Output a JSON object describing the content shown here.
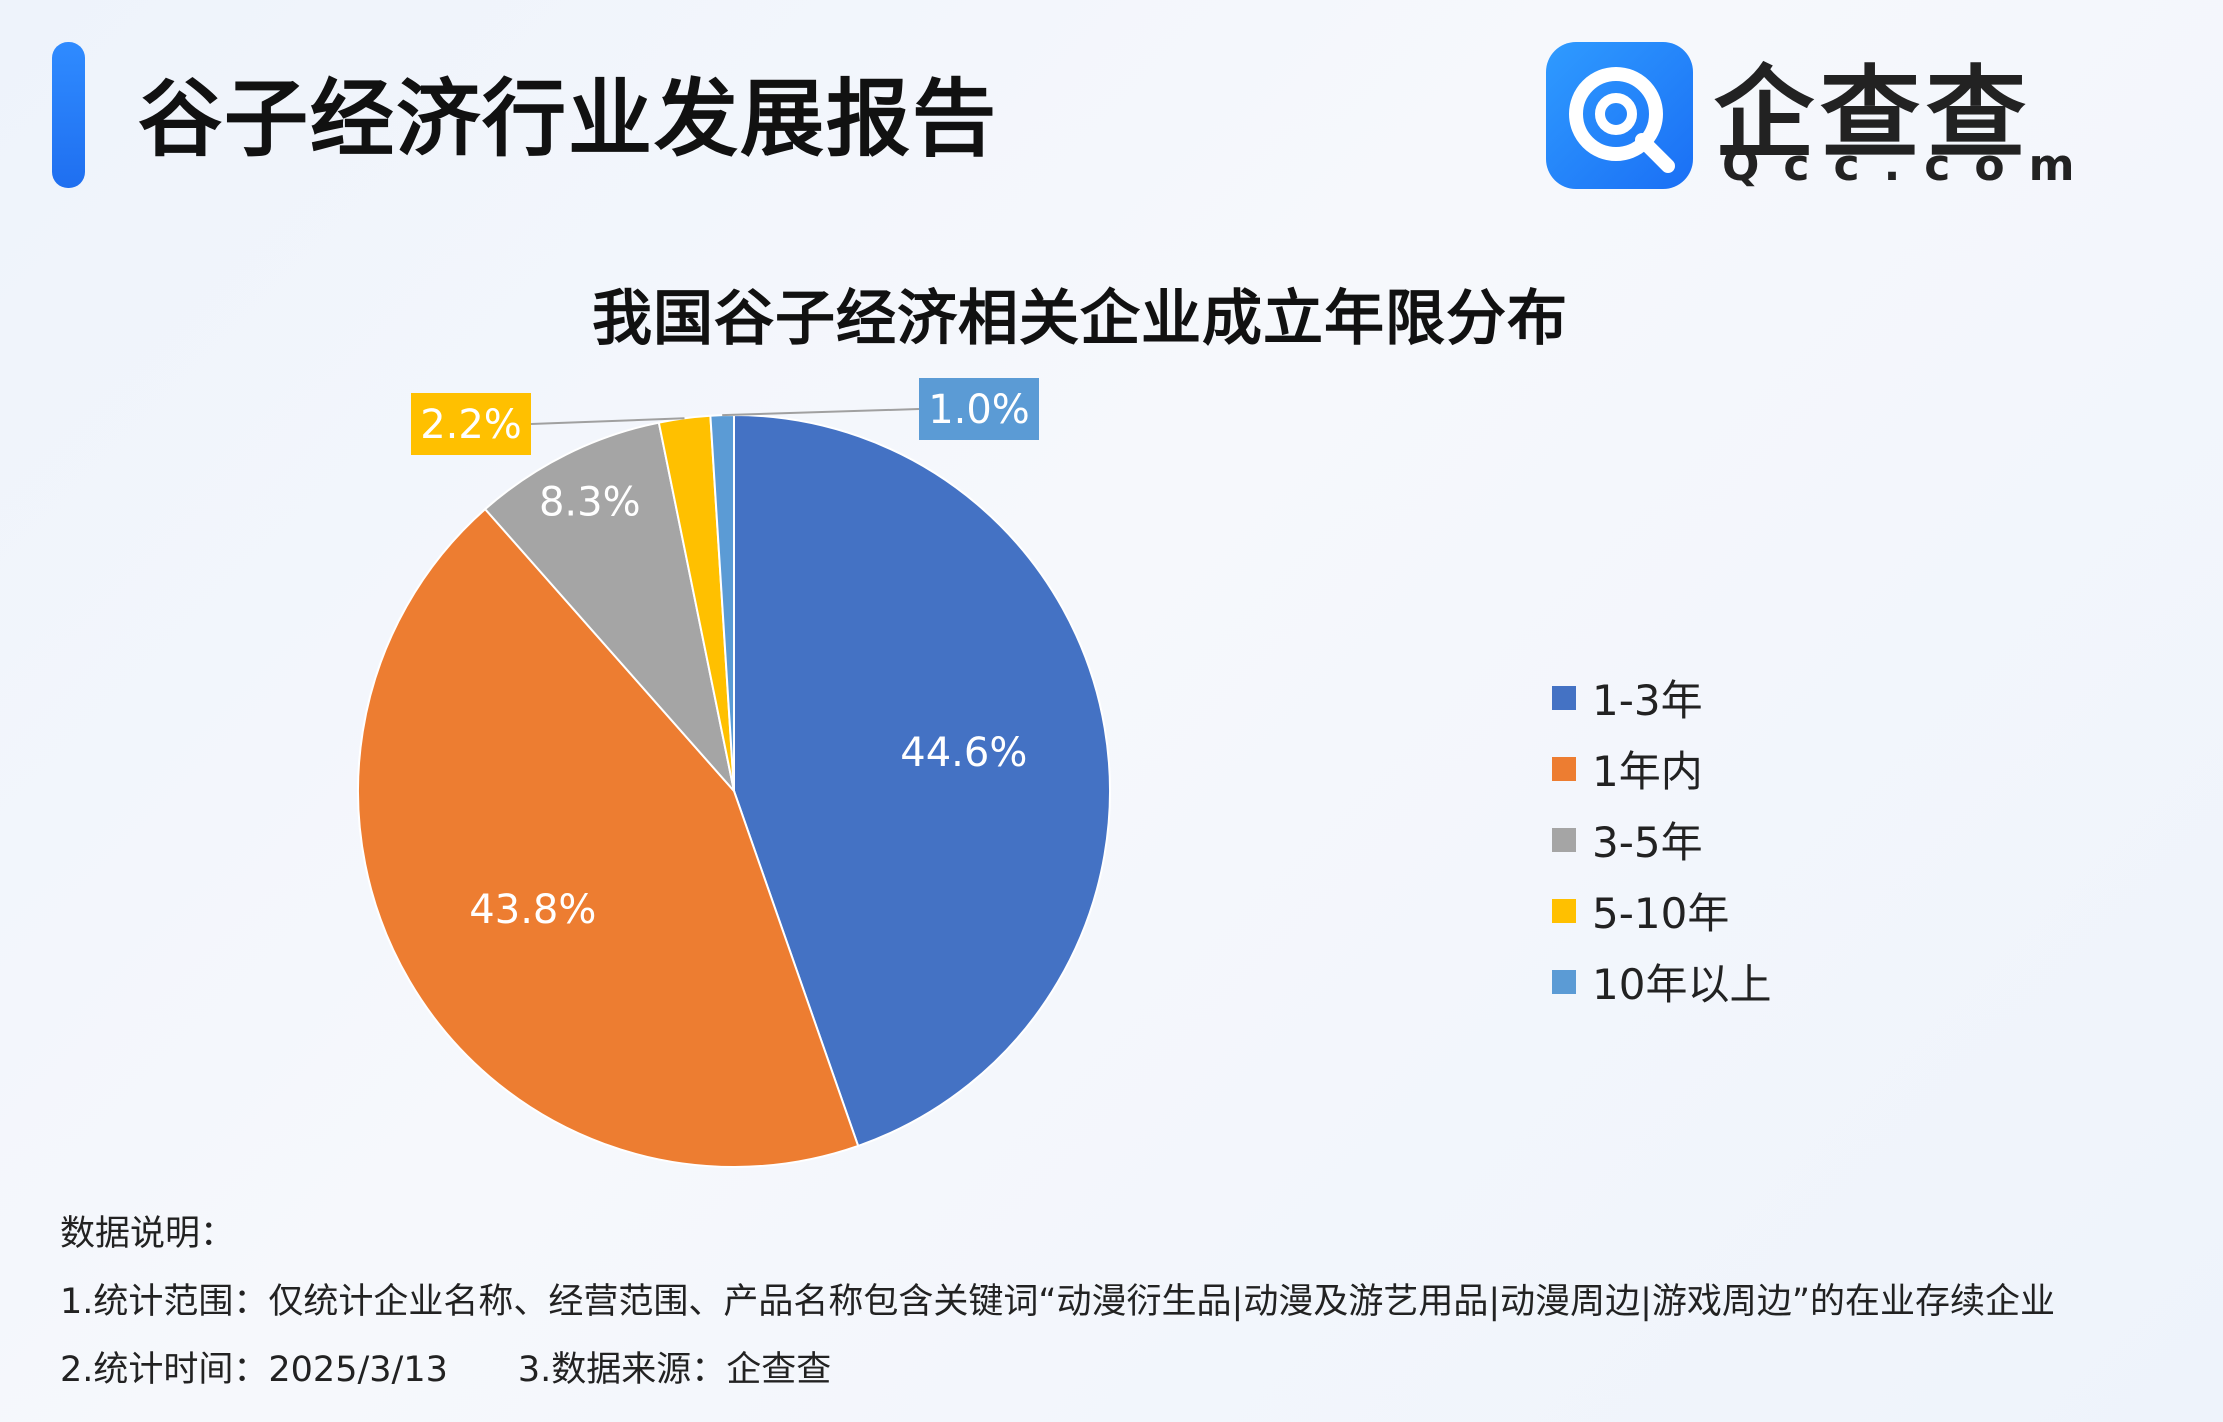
{
  "header": {
    "title": "谷子经济行业发展报告",
    "logo_cn": "企查查",
    "logo_en": "Qcc.com"
  },
  "chart_data": {
    "type": "pie",
    "title": "我国谷子经济相关企业成立年限分布",
    "categories": [
      "1-3年",
      "1年内",
      "3-5年",
      "5-10年",
      "10年以上"
    ],
    "values": [
      44.6,
      43.8,
      8.3,
      2.2,
      1.0
    ],
    "labels": [
      "44.6%",
      "43.8%",
      "8.3%",
      "2.2%",
      "1.0%"
    ],
    "colors": [
      "#4472c4",
      "#ed7d31",
      "#a5a5a5",
      "#ffc000",
      "#5b9bd5"
    ],
    "legend_position": "right"
  },
  "notes": {
    "heading": "数据说明：",
    "scope": "1.统计范围：仅统计企业名称、经营范围、产品名称包含关键词“动漫衍生品|动漫及游艺用品|动漫周边|游戏周边”的在业存续企业",
    "time": "2.统计时间：2025/3/13",
    "source": "3.数据来源：企查查"
  }
}
